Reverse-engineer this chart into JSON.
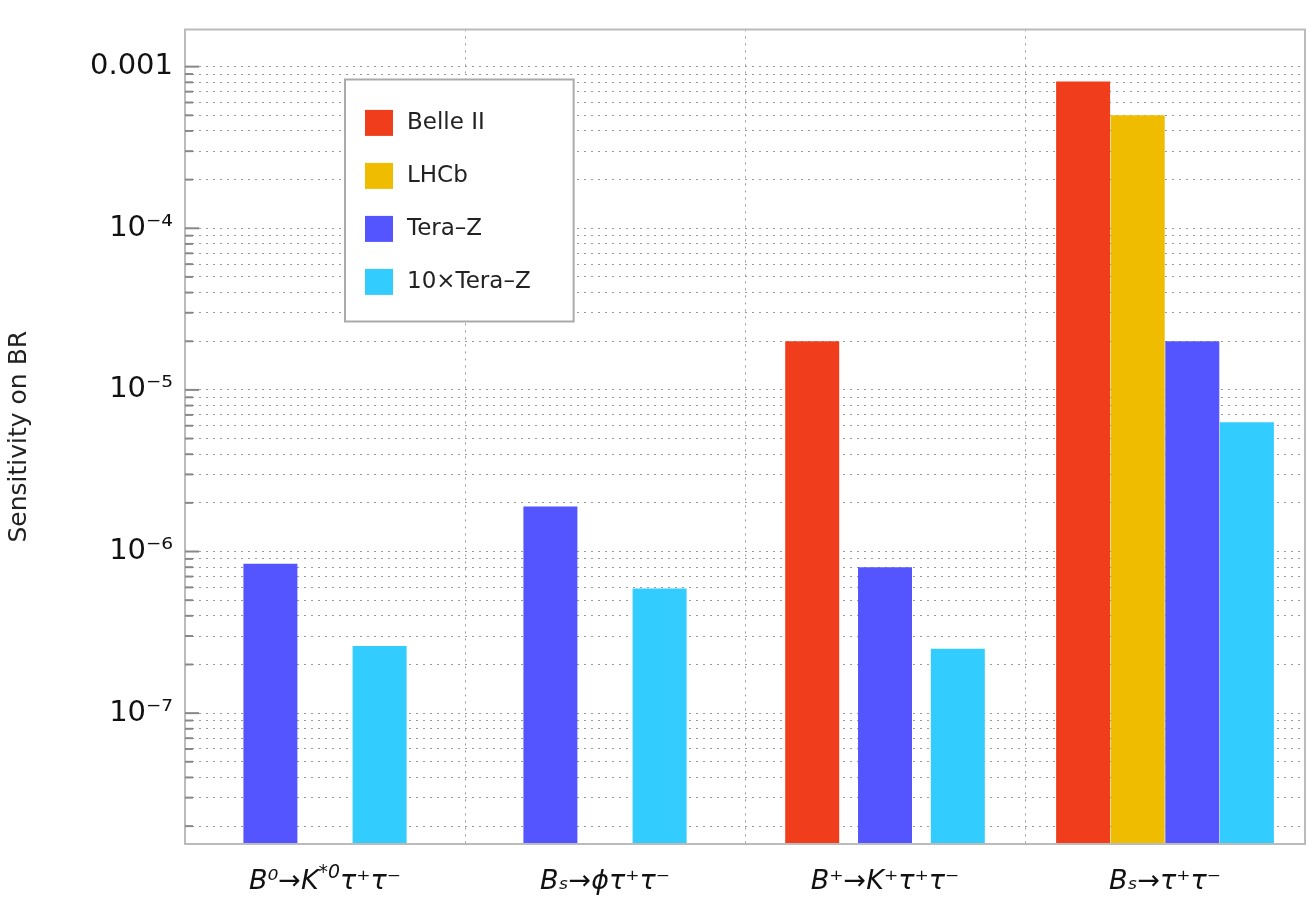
{
  "chart_data": {
    "type": "bar",
    "ylabel": "Sensitivity on BR",
    "categories": [
      "B⁰→K$^{*0}$τ⁺τ⁻",
      "Bₛ→ϕτ⁺τ⁻",
      "B⁺→K⁺τ⁺τ⁻",
      "Bₛ→τ⁺τ⁻"
    ],
    "series": [
      {
        "name": "Belle II",
        "color": "#f03e1c",
        "values": [
          null,
          null,
          2e-05,
          0.00081
        ]
      },
      {
        "name": "LHCb",
        "color": "#f0bc00",
        "values": [
          null,
          null,
          null,
          0.0005
        ]
      },
      {
        "name": "Tera–Z",
        "color": "#5555ff",
        "values": [
          8.4e-07,
          1.9e-06,
          8e-07,
          2e-05
        ]
      },
      {
        "name": "10×Tera–Z",
        "color": "#33ccff",
        "values": [
          2.6e-07,
          5.9e-07,
          2.5e-07,
          6.3e-06
        ]
      }
    ],
    "log": "y",
    "ylim": [
      1.55e-08,
      0.0017
    ],
    "yticks": [
      {
        "value": 2e-08,
        "label": null
      },
      {
        "value": 3e-08,
        "label": null
      },
      {
        "value": 4e-08,
        "label": null
      },
      {
        "value": 5e-08,
        "label": null
      },
      {
        "value": 6e-08,
        "label": null
      },
      {
        "value": 7e-08,
        "label": null
      },
      {
        "value": 8e-08,
        "label": null
      },
      {
        "value": 9e-08,
        "label": null
      },
      {
        "value": 1e-07,
        "label": "10⁻⁷"
      },
      {
        "value": 2e-07,
        "label": null
      },
      {
        "value": 3e-07,
        "label": null
      },
      {
        "value": 4e-07,
        "label": null
      },
      {
        "value": 5e-07,
        "label": null
      },
      {
        "value": 6e-07,
        "label": null
      },
      {
        "value": 7e-07,
        "label": null
      },
      {
        "value": 8e-07,
        "label": null
      },
      {
        "value": 9e-07,
        "label": null
      },
      {
        "value": 1e-06,
        "label": "10⁻⁶"
      },
      {
        "value": 2e-06,
        "label": null
      },
      {
        "value": 3e-06,
        "label": null
      },
      {
        "value": 4e-06,
        "label": null
      },
      {
        "value": 5e-06,
        "label": null
      },
      {
        "value": 6e-06,
        "label": null
      },
      {
        "value": 7e-06,
        "label": null
      },
      {
        "value": 8e-06,
        "label": null
      },
      {
        "value": 9e-06,
        "label": null
      },
      {
        "value": 1e-05,
        "label": "10⁻⁵"
      },
      {
        "value": 2e-05,
        "label": null
      },
      {
        "value": 3e-05,
        "label": null
      },
      {
        "value": 4e-05,
        "label": null
      },
      {
        "value": 5e-05,
        "label": null
      },
      {
        "value": 6e-05,
        "label": null
      },
      {
        "value": 7e-05,
        "label": null
      },
      {
        "value": 8e-05,
        "label": null
      },
      {
        "value": 9e-05,
        "label": null
      },
      {
        "value": 0.0001,
        "label": "10⁻⁴"
      },
      {
        "value": 0.0002,
        "label": null
      },
      {
        "value": 0.0003,
        "label": null
      },
      {
        "value": 0.0004,
        "label": null
      },
      {
        "value": 0.0005,
        "label": null
      },
      {
        "value": 0.0006,
        "label": null
      },
      {
        "value": 0.0007,
        "label": null
      },
      {
        "value": 0.0008,
        "label": null
      },
      {
        "value": 0.0009,
        "label": null
      },
      {
        "value": 0.001,
        "label": "0.001"
      }
    ],
    "grid": true,
    "legend": "top left"
  }
}
